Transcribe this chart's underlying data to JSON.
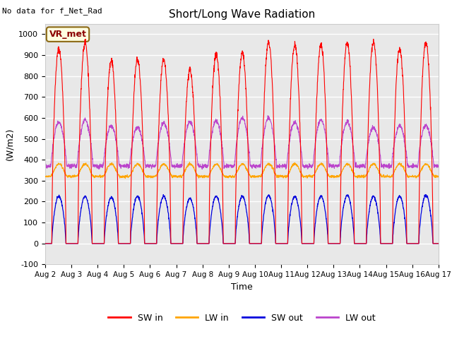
{
  "title": "Short/Long Wave Radiation",
  "xlabel": "Time",
  "ylabel": "(W/m2)",
  "ylim": [
    -100,
    1050
  ],
  "xtick_labels": [
    "Aug 2",
    "Aug 3",
    "Aug 4",
    "Aug 5",
    "Aug 6",
    "Aug 7",
    "Aug 8",
    "Aug 9",
    "Aug 10",
    "Aug 11",
    "Aug 12",
    "Aug 13",
    "Aug 14",
    "Aug 15",
    "Aug 16",
    "Aug 17"
  ],
  "ytick_values": [
    -100,
    0,
    100,
    200,
    300,
    400,
    500,
    600,
    700,
    800,
    900,
    1000
  ],
  "ytick_labels": [
    "-100",
    "0",
    "100",
    "200",
    "300",
    "400",
    "500",
    "600",
    "700",
    "800",
    "900",
    "1000"
  ],
  "series_colors": {
    "SW_in": "#ff0000",
    "LW_in": "#ffa500",
    "SW_out": "#0000dd",
    "LW_out": "#bb44cc"
  },
  "legend_labels": [
    "SW in",
    "LW in",
    "SW out",
    "LW out"
  ],
  "annotation_text": "No data for f_Net_Rad",
  "box_label": "VR_met",
  "plot_bg_color": "#e8e8e8",
  "fig_bg_color": "#ffffff",
  "num_days": 15,
  "sw_in_peaks": [
    930,
    960,
    870,
    880,
    880,
    830,
    900,
    910,
    960,
    950,
    950,
    960,
    960,
    930,
    960
  ],
  "sw_out_peaks": [
    225,
    225,
    220,
    225,
    225,
    215,
    225,
    225,
    230,
    225,
    225,
    230,
    225,
    225,
    230
  ],
  "lw_in_base": 320,
  "lw_out_base": 370,
  "lw_out_peaks": [
    580,
    590,
    560,
    555,
    575,
    580,
    585,
    600,
    600,
    580,
    590,
    580,
    555,
    560,
    565
  ]
}
